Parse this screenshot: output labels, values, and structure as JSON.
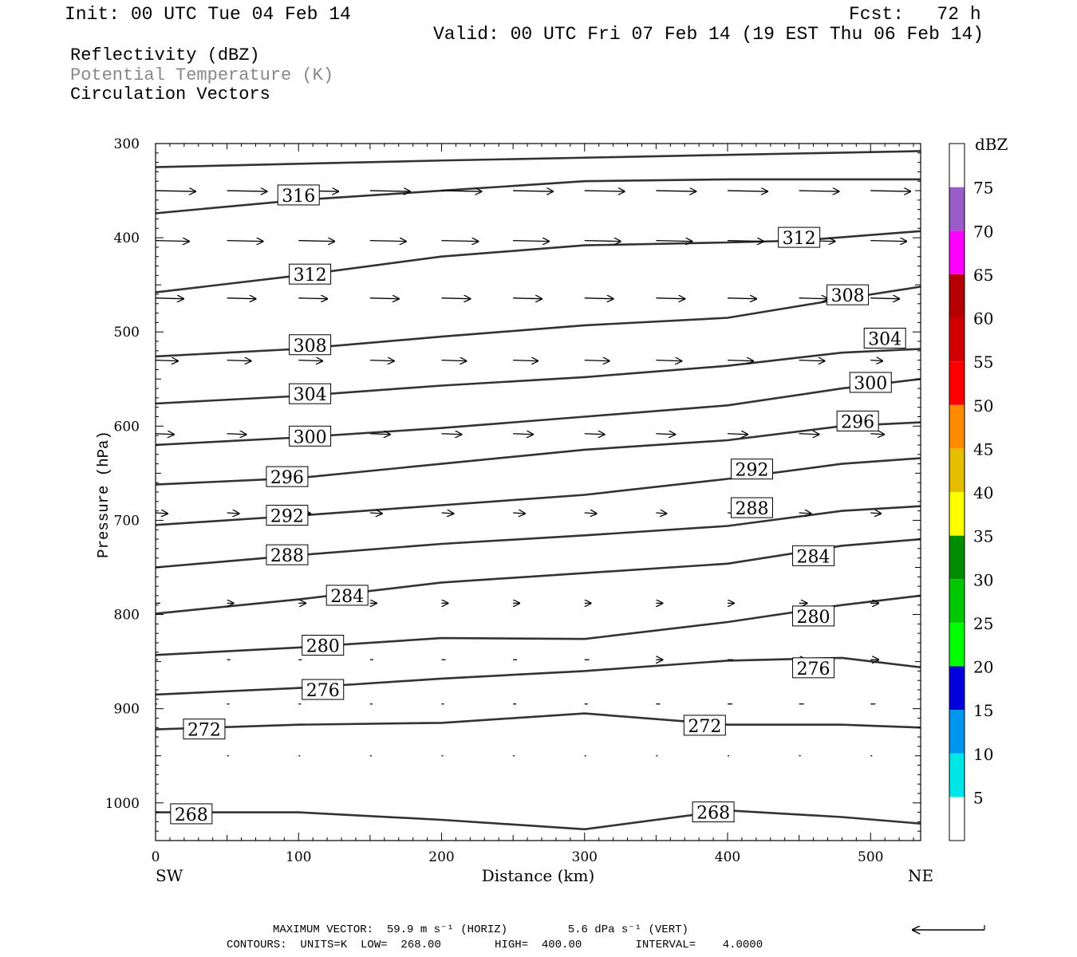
{
  "header": {
    "init": "Init: 00 UTC Tue 04 Feb 14",
    "fcst": "Fcst:   72 h",
    "valid": "Valid: 00 UTC Fri 07 Feb 14 (19 EST Thu 06 Feb 14)"
  },
  "legend": {
    "line1": "Reflectivity (dBZ)",
    "line2": "Potential Temperature (K)",
    "line3": "Circulation Vectors"
  },
  "footer": {
    "max_vector": "MAXIMUM VECTOR:  59.9 m s⁻¹ (HORIZ)         5.6 dPa s⁻¹ (VERT)",
    "contours": "CONTOURS:  UNITS=K  LOW=  268.00        HIGH=  400.00        INTERVAL=    4.0000"
  },
  "colors": {
    "contour": "#333333",
    "vector": "#000000",
    "frame": "#000000"
  },
  "chart_data": {
    "type": "line",
    "title": "",
    "xlabel": "Distance (km)",
    "ylabel": "Pressure (hPa)",
    "x_left_label": "SW",
    "x_right_label": "NE",
    "xlim": [
      0,
      535
    ],
    "ylim": [
      1040,
      300
    ],
    "y_scale": "linear (inverted)",
    "xticks": [
      0,
      100,
      200,
      300,
      400,
      500
    ],
    "yticks": [
      300,
      400,
      500,
      600,
      700,
      800,
      900,
      1000
    ],
    "colorbar": {
      "title": "dBZ",
      "levels": [
        5,
        10,
        15,
        20,
        25,
        30,
        35,
        40,
        45,
        50,
        55,
        60,
        65,
        70,
        75
      ],
      "colors": [
        "#ffffff",
        "#00e5e5",
        "#0096f0",
        "#0000dc",
        "#00ff00",
        "#00c800",
        "#008c00",
        "#ffff00",
        "#e6be00",
        "#ff8c00",
        "#ff0000",
        "#d20000",
        "#b40000",
        "#ff00ff",
        "#9a5cc8",
        "#ffffff"
      ]
    },
    "series": [
      {
        "name": "316",
        "label_at": [
          [
            100,
            355
          ]
        ],
        "x": [
          0,
          100,
          200,
          300,
          400,
          535
        ],
        "values": [
          374,
          360,
          350,
          340,
          338,
          338
        ]
      },
      {
        "name": "312",
        "label_at": [
          [
            108,
            439
          ],
          [
            450,
            400
          ]
        ],
        "x": [
          0,
          100,
          200,
          300,
          400,
          450,
          535
        ],
        "values": [
          458,
          440,
          420,
          408,
          405,
          403,
          393
        ]
      },
      {
        "name": "308",
        "label_at": [
          [
            108,
            514
          ],
          [
            484,
            461
          ]
        ],
        "x": [
          0,
          100,
          200,
          300,
          400,
          480,
          535
        ],
        "values": [
          526,
          518,
          505,
          493,
          485,
          465,
          452
        ]
      },
      {
        "name": "304",
        "label_at": [
          [
            108,
            566
          ],
          [
            510,
            507
          ]
        ],
        "x": [
          0,
          100,
          200,
          300,
          400,
          480,
          535
        ],
        "values": [
          576,
          568,
          557,
          548,
          536,
          522,
          518
        ]
      },
      {
        "name": "300",
        "label_at": [
          [
            108,
            611
          ],
          [
            500,
            554
          ]
        ],
        "x": [
          0,
          100,
          200,
          300,
          400,
          480,
          535
        ],
        "values": [
          620,
          612,
          602,
          590,
          578,
          560,
          550
        ]
      },
      {
        "name": "296",
        "label_at": [
          [
            92,
            654
          ],
          [
            491,
            595
          ]
        ],
        "x": [
          0,
          100,
          200,
          300,
          400,
          480,
          535
        ],
        "values": [
          662,
          655,
          640,
          625,
          615,
          600,
          596
        ]
      },
      {
        "name": "292",
        "label_at": [
          [
            92,
            695
          ],
          [
            417,
            646
          ]
        ],
        "x": [
          0,
          100,
          200,
          300,
          400,
          480,
          535
        ],
        "values": [
          705,
          695,
          684,
          673,
          656,
          640,
          634
        ]
      },
      {
        "name": "288",
        "label_at": [
          [
            92,
            737
          ],
          [
            417,
            687
          ]
        ],
        "x": [
          0,
          100,
          200,
          300,
          400,
          480,
          535
        ],
        "values": [
          750,
          737,
          725,
          716,
          706,
          690,
          685
        ]
      },
      {
        "name": "284",
        "label_at": [
          [
            134,
            780
          ],
          [
            460,
            738
          ]
        ],
        "x": [
          0,
          100,
          200,
          300,
          400,
          480,
          535
        ],
        "values": [
          799,
          784,
          766,
          756,
          746,
          727,
          720
        ]
      },
      {
        "name": "280",
        "label_at": [
          [
            117,
            833
          ],
          [
            460,
            802
          ]
        ],
        "x": [
          0,
          100,
          200,
          300,
          400,
          480,
          535
        ],
        "values": [
          843,
          835,
          825,
          826,
          808,
          790,
          780
        ]
      },
      {
        "name": "276",
        "label_at": [
          [
            117,
            880
          ],
          [
            460,
            857
          ]
        ],
        "x": [
          0,
          100,
          200,
          300,
          400,
          480,
          535
        ],
        "values": [
          885,
          878,
          868,
          860,
          849,
          846,
          856
        ]
      },
      {
        "name": "272",
        "label_at": [
          [
            34,
            922
          ],
          [
            384,
            918
          ]
        ],
        "x": [
          0,
          100,
          200,
          300,
          400,
          480,
          535
        ],
        "values": [
          922,
          917,
          915,
          905,
          917,
          917,
          920
        ]
      },
      {
        "name": "268",
        "label_at": [
          [
            25,
            1012
          ],
          [
            390,
            1010
          ]
        ],
        "x": [
          0,
          100,
          200,
          300,
          400,
          480,
          535
        ],
        "values": [
          1010,
          1010,
          1018,
          1028,
          1008,
          1015,
          1022
        ]
      }
    ],
    "vectors": {
      "columns_x": [
        0,
        50,
        100,
        150,
        200,
        250,
        300,
        350,
        400,
        450,
        500
      ],
      "rows": [
        {
          "p": 350,
          "lengths": [
            50,
            50,
            50,
            50,
            50,
            50,
            50,
            50,
            50,
            50,
            50
          ]
        },
        {
          "p": 403,
          "lengths": [
            42,
            45,
            45,
            45,
            46,
            45,
            45,
            45,
            45,
            45,
            45
          ]
        },
        {
          "p": 464,
          "lengths": [
            35,
            36,
            36,
            36,
            36,
            36,
            36,
            36,
            36,
            36,
            36
          ]
        },
        {
          "p": 530,
          "lengths": [
            28,
            30,
            30,
            30,
            31,
            31,
            31,
            32,
            32,
            32,
            15
          ]
        },
        {
          "p": 608,
          "lengths": [
            23,
            24,
            25,
            25,
            25,
            25,
            25,
            24,
            25,
            25,
            17
          ]
        },
        {
          "p": 692,
          "lengths": [
            15,
            15,
            15,
            15,
            15,
            15,
            15,
            13,
            15,
            15,
            13
          ]
        },
        {
          "p": 788,
          "lengths": [
            6,
            8,
            9,
            8,
            8,
            8,
            8,
            8,
            8,
            10,
            10
          ]
        },
        {
          "p": 848,
          "lengths": [
            3,
            4,
            4,
            4,
            5,
            5,
            6,
            8,
            7,
            9,
            10
          ]
        },
        {
          "p": 895,
          "lengths": [
            2,
            3,
            3,
            3,
            3,
            4,
            4,
            5,
            6,
            6,
            6
          ]
        },
        {
          "p": 950,
          "lengths": [
            2,
            2,
            2,
            2,
            2,
            2,
            2,
            2,
            2,
            2,
            2
          ]
        }
      ]
    },
    "max_vector_horiz": "59.9 m s⁻¹",
    "max_vector_vert": "5.6 dPa s⁻¹",
    "contour_units": "K",
    "contour_low": 268.0,
    "contour_high": 400.0,
    "contour_interval": 4.0
  }
}
